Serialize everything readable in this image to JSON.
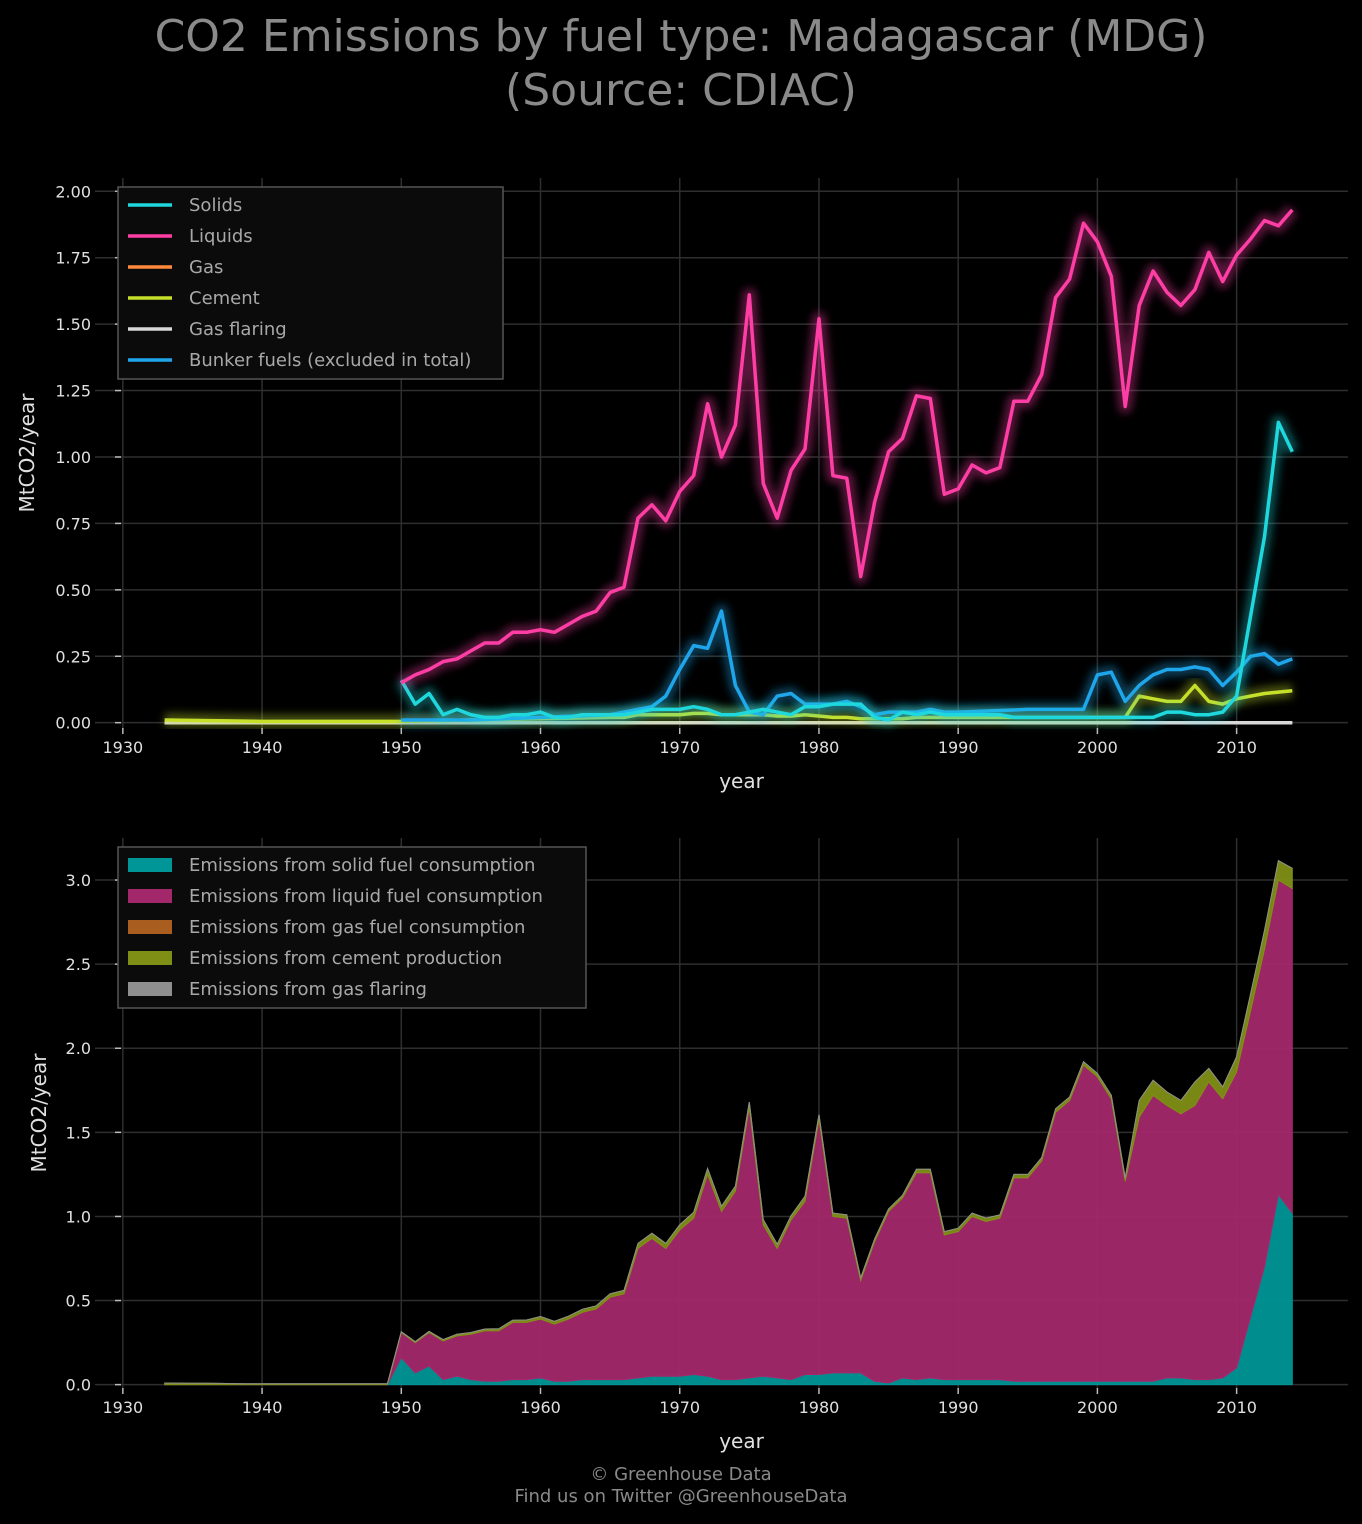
{
  "title": {
    "line1": "CO2 Emissions by fuel type: Madagascar (MDG)",
    "line2": "(Source: CDIAC)"
  },
  "footer": {
    "line1": "© Greenhouse Data",
    "line2": "Find us on Twitter @GreenhouseData"
  },
  "chart_data": [
    {
      "type": "line",
      "xlabel": "year",
      "ylabel": "MtCO2/year",
      "xlim": [
        1928,
        2018
      ],
      "ylim": [
        -0.02,
        2.05
      ],
      "xticks": [
        "1930",
        "1940",
        "1950",
        "1960",
        "1970",
        "1980",
        "1990",
        "2000",
        "2010"
      ],
      "yticks": [
        "0.00",
        "0.25",
        "0.50",
        "0.75",
        "1.00",
        "1.25",
        "1.50",
        "1.75",
        "2.00"
      ],
      "grid": true,
      "legend_position": "top-left",
      "series": [
        {
          "name": "Solids",
          "color": "#1fd8dd",
          "x": [
            1950,
            1951,
            1952,
            1953,
            1954,
            1955,
            1956,
            1957,
            1958,
            1959,
            1960,
            1961,
            1962,
            1963,
            1964,
            1965,
            1966,
            1967,
            1968,
            1969,
            1970,
            1971,
            1972,
            1973,
            1974,
            1975,
            1976,
            1977,
            1978,
            1979,
            1980,
            1981,
            1982,
            1983,
            1984,
            1985,
            1986,
            1987,
            1988,
            1989,
            1990,
            1991,
            1992,
            1993,
            1994,
            1995,
            1996,
            1997,
            1998,
            1999,
            2000,
            2001,
            2002,
            2003,
            2004,
            2005,
            2006,
            2007,
            2008,
            2009,
            2010,
            2011,
            2012,
            2013,
            2014
          ],
          "y": [
            0.16,
            0.07,
            0.11,
            0.03,
            0.05,
            0.03,
            0.02,
            0.02,
            0.03,
            0.03,
            0.04,
            0.02,
            0.02,
            0.03,
            0.03,
            0.03,
            0.03,
            0.04,
            0.05,
            0.05,
            0.05,
            0.06,
            0.05,
            0.03,
            0.03,
            0.04,
            0.05,
            0.04,
            0.03,
            0.06,
            0.06,
            0.07,
            0.07,
            0.07,
            0.02,
            0.01,
            0.04,
            0.03,
            0.04,
            0.03,
            0.03,
            0.03,
            0.03,
            0.03,
            0.02,
            0.02,
            0.02,
            0.02,
            0.02,
            0.02,
            0.02,
            0.02,
            0.02,
            0.02,
            0.02,
            0.04,
            0.04,
            0.03,
            0.03,
            0.04,
            0.1,
            0.4,
            0.7,
            1.13,
            1.02
          ]
        },
        {
          "name": "Liquids",
          "color": "#ff3ea5",
          "x": [
            1950,
            1951,
            1952,
            1953,
            1954,
            1955,
            1956,
            1957,
            1958,
            1959,
            1960,
            1961,
            1962,
            1963,
            1964,
            1965,
            1966,
            1967,
            1968,
            1969,
            1970,
            1971,
            1972,
            1973,
            1974,
            1975,
            1976,
            1977,
            1978,
            1979,
            1980,
            1981,
            1982,
            1983,
            1984,
            1985,
            1986,
            1987,
            1988,
            1989,
            1990,
            1991,
            1992,
            1993,
            1994,
            1995,
            1996,
            1997,
            1998,
            1999,
            2000,
            2001,
            2002,
            2003,
            2004,
            2005,
            2006,
            2007,
            2008,
            2009,
            2010,
            2011,
            2012,
            2013,
            2014
          ],
          "y": [
            0.15,
            0.18,
            0.2,
            0.23,
            0.24,
            0.27,
            0.3,
            0.3,
            0.34,
            0.34,
            0.35,
            0.34,
            0.37,
            0.4,
            0.42,
            0.49,
            0.51,
            0.77,
            0.82,
            0.76,
            0.87,
            0.93,
            1.2,
            1.0,
            1.12,
            1.61,
            0.9,
            0.77,
            0.95,
            1.03,
            1.52,
            0.93,
            0.92,
            0.55,
            0.83,
            1.02,
            1.07,
            1.23,
            1.22,
            0.86,
            0.88,
            0.97,
            0.94,
            0.96,
            1.21,
            1.21,
            1.31,
            1.6,
            1.67,
            1.88,
            1.81,
            1.68,
            1.19,
            1.57,
            1.7,
            1.62,
            1.57,
            1.63,
            1.77,
            1.66,
            1.76,
            1.82,
            1.89,
            1.87,
            1.93
          ]
        },
        {
          "name": "Gas",
          "color": "#ff8a3d",
          "x": [
            1933,
            1950,
            2010,
            2014
          ],
          "y": [
            0,
            0,
            0,
            0
          ]
        },
        {
          "name": "Cement",
          "color": "#c6e02a",
          "x": [
            1933,
            1940,
            1950,
            1955,
            1960,
            1965,
            1966,
            1967,
            1968,
            1969,
            1970,
            1971,
            1972,
            1973,
            1974,
            1975,
            1976,
            1977,
            1978,
            1979,
            1980,
            1981,
            1982,
            1983,
            1984,
            1985,
            1986,
            1987,
            1988,
            1989,
            1990,
            1991,
            1992,
            1993,
            1994,
            1995,
            1996,
            1997,
            1998,
            1999,
            2000,
            2001,
            2002,
            2003,
            2004,
            2005,
            2006,
            2007,
            2008,
            2009,
            2010,
            2011,
            2012,
            2013,
            2014
          ],
          "y": [
            0.01,
            0.005,
            0.005,
            0.01,
            0.015,
            0.02,
            0.02,
            0.03,
            0.03,
            0.03,
            0.03,
            0.035,
            0.035,
            0.03,
            0.03,
            0.03,
            0.03,
            0.025,
            0.025,
            0.03,
            0.025,
            0.02,
            0.02,
            0.015,
            0.015,
            0.015,
            0.015,
            0.02,
            0.02,
            0.02,
            0.02,
            0.02,
            0.02,
            0.02,
            0.02,
            0.02,
            0.02,
            0.02,
            0.02,
            0.02,
            0.02,
            0.02,
            0.02,
            0.1,
            0.09,
            0.08,
            0.08,
            0.14,
            0.08,
            0.07,
            0.09,
            0.1,
            0.11,
            0.115,
            0.12
          ]
        },
        {
          "name": "Gas flaring",
          "color": "#d8d8d8",
          "x": [
            1933,
            2014
          ],
          "y": [
            0,
            0
          ]
        },
        {
          "name": "Bunker fuels (excluded in total)",
          "color": "#1fa6ea",
          "x": [
            1950,
            1952,
            1955,
            1960,
            1965,
            1966,
            1967,
            1968,
            1969,
            1970,
            1971,
            1972,
            1973,
            1974,
            1975,
            1976,
            1977,
            1978,
            1979,
            1980,
            1981,
            1982,
            1983,
            1984,
            1985,
            1986,
            1987,
            1988,
            1989,
            1990,
            1995,
            1999,
            2000,
            2001,
            2002,
            2003,
            2004,
            2005,
            2006,
            2007,
            2008,
            2009,
            2010,
            2011,
            2012,
            2013,
            2014
          ],
          "y": [
            0.01,
            0.01,
            0.01,
            0.02,
            0.03,
            0.04,
            0.05,
            0.06,
            0.1,
            0.2,
            0.29,
            0.28,
            0.42,
            0.14,
            0.04,
            0.03,
            0.1,
            0.11,
            0.07,
            0.07,
            0.07,
            0.08,
            0.06,
            0.03,
            0.04,
            0.04,
            0.04,
            0.05,
            0.04,
            0.04,
            0.05,
            0.05,
            0.18,
            0.19,
            0.08,
            0.14,
            0.18,
            0.2,
            0.2,
            0.21,
            0.2,
            0.14,
            0.19,
            0.25,
            0.26,
            0.22,
            0.24
          ]
        }
      ]
    },
    {
      "type": "area",
      "stacked": true,
      "xlabel": "year",
      "ylabel": "MtCO2/year",
      "xlim": [
        1928,
        2018
      ],
      "ylim": [
        -0.02,
        3.25
      ],
      "xticks": [
        "1930",
        "1940",
        "1950",
        "1960",
        "1970",
        "1980",
        "1990",
        "2000",
        "2010"
      ],
      "yticks": [
        "0.0",
        "0.5",
        "1.0",
        "1.5",
        "2.0",
        "2.5",
        "3.0"
      ],
      "grid": true,
      "legend_position": "top-left",
      "series": [
        {
          "name": "Emissions from solid fuel consumption",
          "color": "#009596"
        },
        {
          "name": "Emissions from liquid fuel consumption",
          "color": "#a3286b"
        },
        {
          "name": "Emissions from gas fuel consumption",
          "color": "#a95d1f"
        },
        {
          "name": "Emissions from cement production",
          "color": "#7f8f16"
        },
        {
          "name": "Emissions from gas flaring",
          "color": "#8f8f8f"
        }
      ]
    }
  ]
}
